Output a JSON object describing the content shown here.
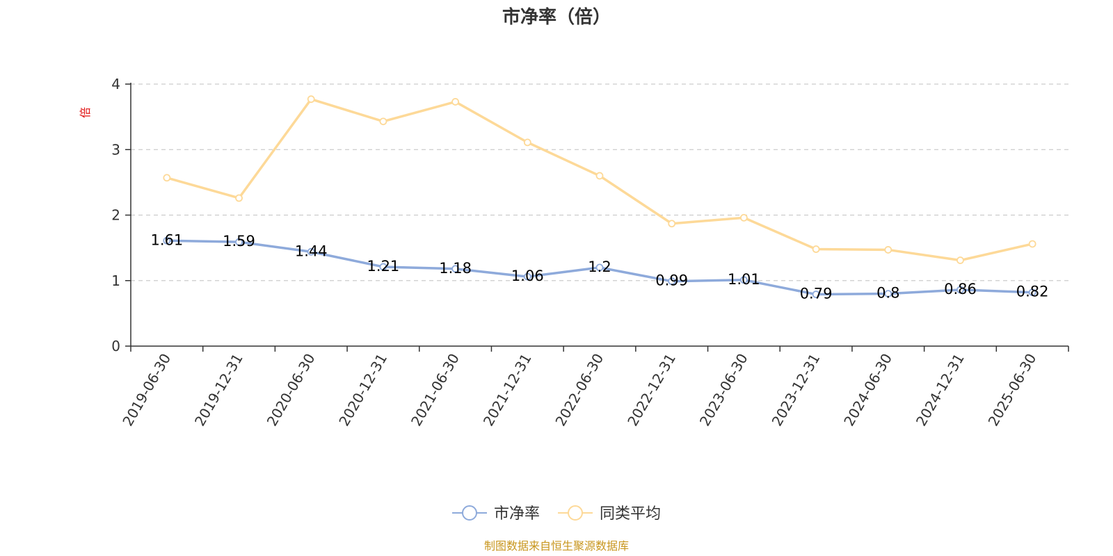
{
  "chart_data": {
    "type": "line",
    "title": "市净率（倍）",
    "ylabel": "倍",
    "ylim": [
      0,
      4
    ],
    "yticks": [
      0,
      1,
      2,
      3,
      4
    ],
    "grid": true,
    "legend_position": "bottom-center",
    "categories": [
      "2019-06-30",
      "2019-12-31",
      "2020-06-30",
      "2020-12-31",
      "2021-06-30",
      "2021-12-31",
      "2022-06-30",
      "2022-12-31",
      "2023-06-30",
      "2023-12-31",
      "2024-06-30",
      "2024-12-31",
      "2025-06-30"
    ],
    "series": [
      {
        "name": "市净率",
        "color": "#8eaadb",
        "values": [
          1.61,
          1.59,
          1.44,
          1.21,
          1.18,
          1.06,
          1.2,
          0.99,
          1.01,
          0.79,
          0.8,
          0.86,
          0.82
        ],
        "show_labels": true
      },
      {
        "name": "同类平均",
        "color": "#fdd998",
        "values": [
          2.57,
          2.26,
          3.77,
          3.43,
          3.73,
          3.11,
          2.6,
          1.87,
          1.96,
          1.48,
          1.47,
          1.31,
          1.56
        ],
        "show_labels": false
      }
    ]
  },
  "source_note": "制图数据来自恒生聚源数据库"
}
